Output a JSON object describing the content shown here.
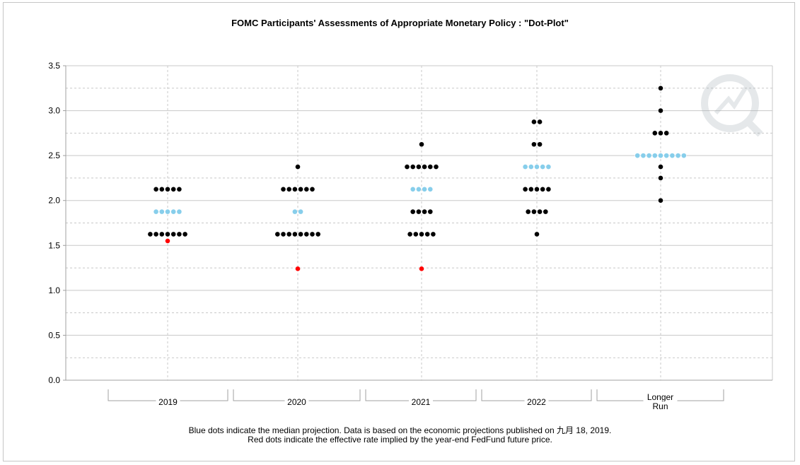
{
  "chart_data": {
    "type": "scatter",
    "title": "FOMC Participants' Assessments of Appropriate Monetary Policy : \"Dot-Plot\"",
    "xlabel": "",
    "ylabel": "",
    "ylim": [
      0,
      3.5
    ],
    "ytick_labels": [
      "0.0",
      "0.5",
      "1.0",
      "1.5",
      "2.0",
      "2.5",
      "3.0",
      "3.5"
    ],
    "grid": true,
    "categories": [
      "2019",
      "2020",
      "2021",
      "2022",
      "Longer Run"
    ],
    "category_labels": [
      [
        "2019"
      ],
      [
        "2020"
      ],
      [
        "2021"
      ],
      [
        "2022"
      ],
      [
        "Longer",
        "Run"
      ]
    ],
    "colors": {
      "participant": "#000000",
      "median": "#87ceeb",
      "future_implied": "#ff0000",
      "grid": "#c8c8c8",
      "axis": "#a0a0a0"
    },
    "participants": [
      [
        {
          "y": 2.125,
          "count": 5
        },
        {
          "y": 1.625,
          "count": 7
        }
      ],
      [
        {
          "y": 2.375,
          "count": 1
        },
        {
          "y": 2.125,
          "count": 6
        },
        {
          "y": 1.625,
          "count": 8
        }
      ],
      [
        {
          "y": 2.625,
          "count": 1
        },
        {
          "y": 2.375,
          "count": 6
        },
        {
          "y": 1.875,
          "count": 4
        },
        {
          "y": 1.625,
          "count": 5
        }
      ],
      [
        {
          "y": 2.875,
          "count": 2
        },
        {
          "y": 2.625,
          "count": 2
        },
        {
          "y": 2.125,
          "count": 5
        },
        {
          "y": 1.875,
          "count": 4
        },
        {
          "y": 1.625,
          "count": 1
        }
      ],
      [
        {
          "y": 3.25,
          "count": 1
        },
        {
          "y": 3.0,
          "count": 1
        },
        {
          "y": 2.75,
          "count": 3
        },
        {
          "y": 2.375,
          "count": 1
        },
        {
          "y": 2.25,
          "count": 1
        },
        {
          "y": 2.0,
          "count": 1
        }
      ]
    ],
    "median": [
      {
        "y": 1.875,
        "count": 5
      },
      {
        "y": 1.875,
        "count": 2
      },
      {
        "y": 2.125,
        "count": 4
      },
      {
        "y": 2.375,
        "count": 5
      },
      {
        "y": 2.5,
        "count": 9
      }
    ],
    "future_implied": [
      1.55,
      1.24,
      1.24,
      null,
      null
    ]
  },
  "footnote": {
    "line1": "Blue dots indicate the median projection. Data is based on the economic projections published on 九月 18, 2019.",
    "line2": "Red dots indicate the effective rate implied by the year-end FedFund future price."
  },
  "watermark_icon": "chart-logo-icon"
}
